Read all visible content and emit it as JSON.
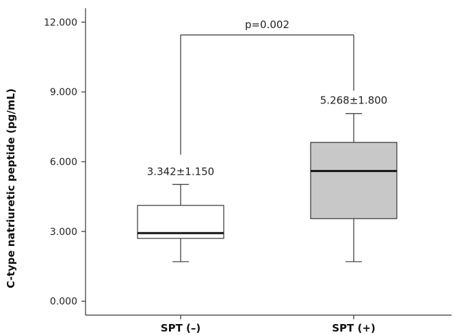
{
  "chart_data": {
    "type": "box",
    "title": "",
    "xlabel": "",
    "ylabel": "C-type natriuretic peptide (pg/mL)",
    "ylim": [
      -0.6,
      12.6
    ],
    "yticks": [
      0,
      3,
      6,
      9,
      12
    ],
    "ytick_labels": [
      "0.000",
      "3.000",
      "6.000",
      "9.000",
      "12.000"
    ],
    "categories": [
      "SPT (–)",
      "SPT (+)"
    ],
    "boxes": [
      {
        "category": "SPT (–)",
        "whisker_low": 1.7,
        "q1": 2.7,
        "median": 2.93,
        "q3": 4.12,
        "whisker_high": 5.02,
        "fill": "#ffffff",
        "annotation": "3.342±1.150"
      },
      {
        "category": "SPT (+)",
        "whisker_low": 1.7,
        "q1": 3.55,
        "median": 5.6,
        "q3": 6.83,
        "whisker_high": 8.07,
        "fill": "#c8c8c8",
        "annotation": "5.268±1.800"
      }
    ],
    "significance": {
      "label": "p=0.002",
      "bracket_y": 11.45,
      "left_end": 6.3,
      "right_end": 9.05
    },
    "grid": false
  }
}
